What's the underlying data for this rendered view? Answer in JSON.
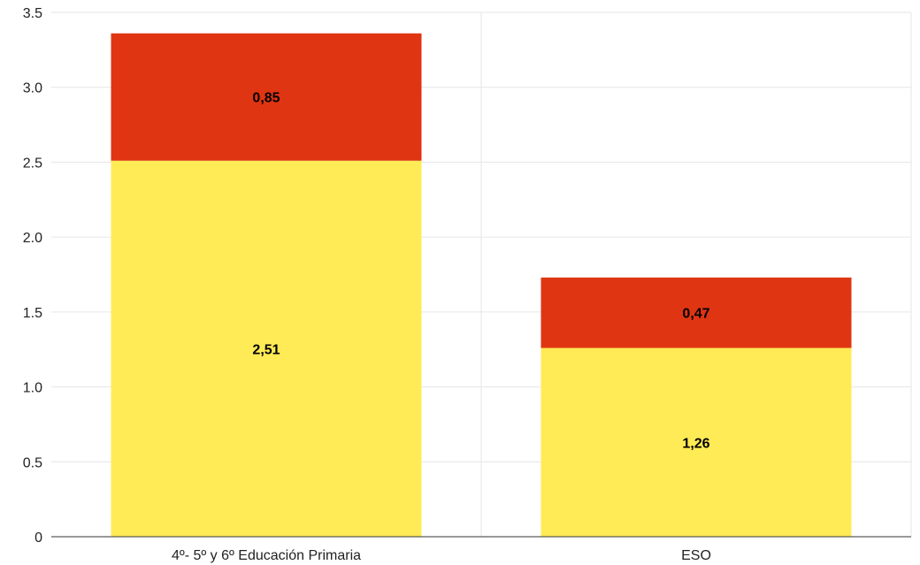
{
  "chart_data": {
    "type": "bar",
    "stacked": true,
    "categories": [
      "4º- 5º y 6º Educación Primaria",
      "ESO"
    ],
    "series": [
      {
        "values": [
          2.51,
          1.26
        ],
        "labels": [
          "2,51",
          "1,26"
        ],
        "color": "#FFEB55"
      },
      {
        "values": [
          0.85,
          0.47
        ],
        "labels": [
          "0,85",
          "0,47"
        ],
        "color": "#DF3512"
      }
    ],
    "ylim": [
      0,
      3.5
    ],
    "yticks": [
      {
        "value": 0,
        "label": "0"
      },
      {
        "value": 0.5,
        "label": "0.5"
      },
      {
        "value": 1.0,
        "label": "1.0"
      },
      {
        "value": 1.5,
        "label": "1.5"
      },
      {
        "value": 2.0,
        "label": "2.0"
      },
      {
        "value": 2.5,
        "label": "2.5"
      },
      {
        "value": 3.0,
        "label": "3.0"
      },
      {
        "value": 3.5,
        "label": "3.5"
      }
    ],
    "grid": true,
    "title": "",
    "xlabel": "",
    "ylabel": ""
  }
}
